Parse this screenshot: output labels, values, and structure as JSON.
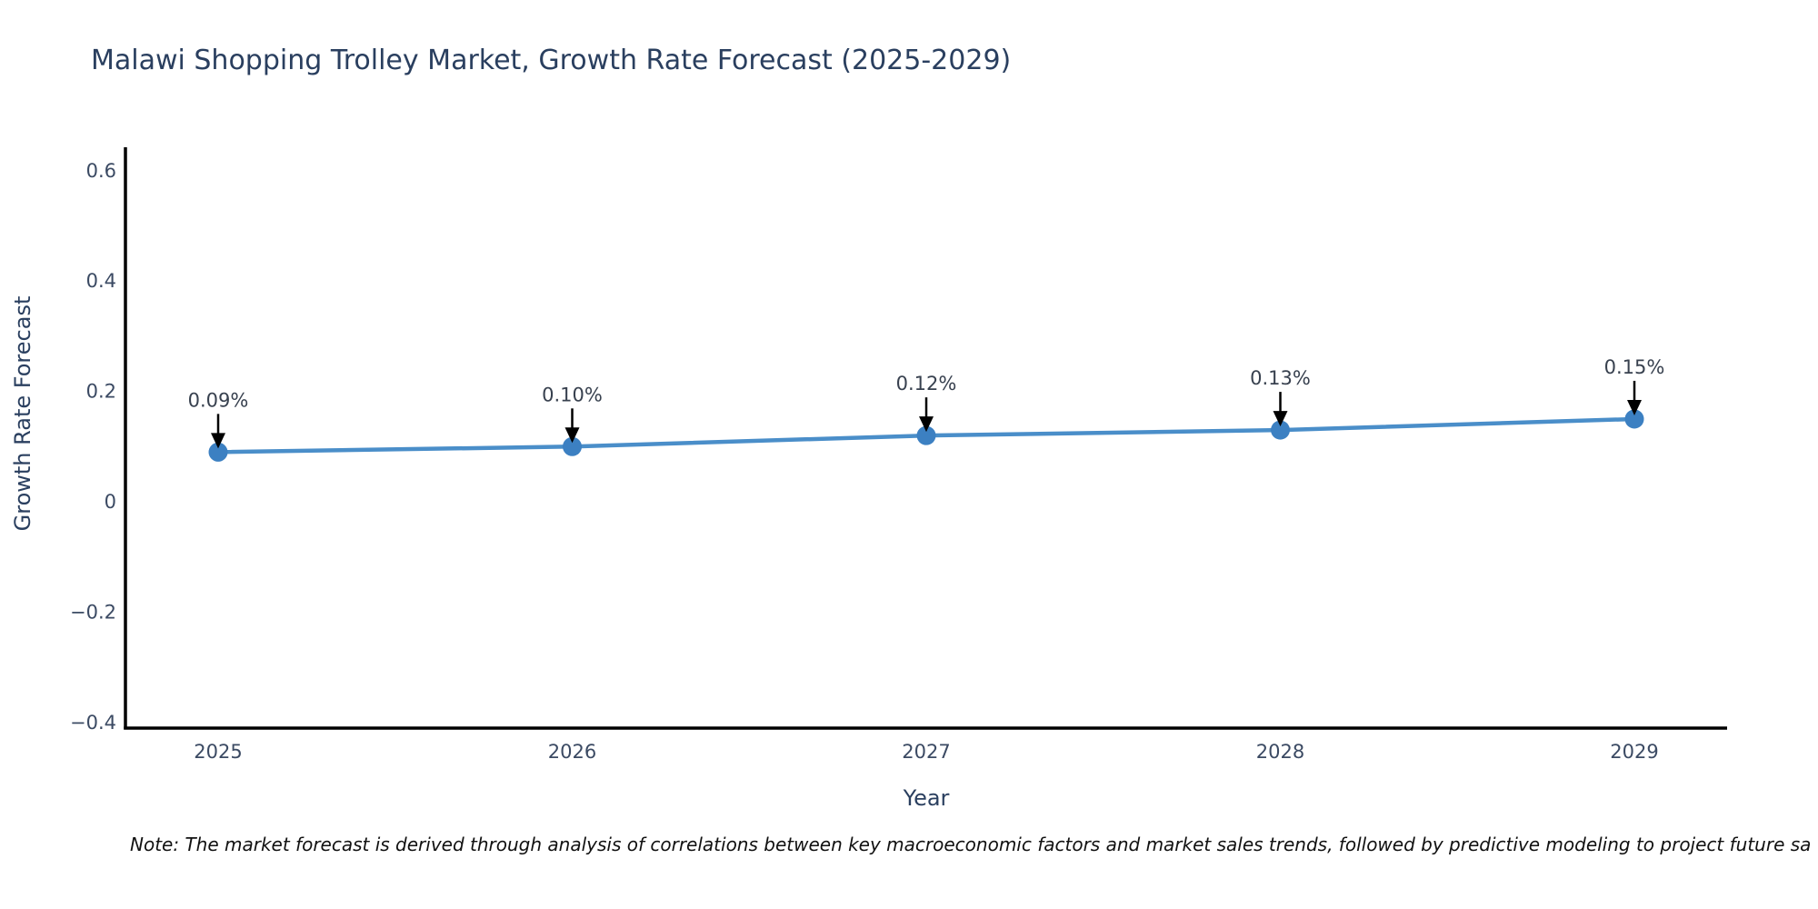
{
  "chart_data": {
    "type": "line",
    "title": "Malawi Shopping Trolley Market, Growth Rate Forecast (2025-2029)",
    "xlabel": "Year",
    "ylabel": "Growth Rate Forecast",
    "categories": [
      "2025",
      "2026",
      "2027",
      "2028",
      "2029"
    ],
    "values": [
      0.09,
      0.1,
      0.12,
      0.13,
      0.15
    ],
    "point_labels": [
      "0.09%",
      "0.10%",
      "0.12%",
      "0.13%",
      "0.15%"
    ],
    "ytick_values": [
      -0.4,
      -0.2,
      0,
      0.2,
      0.4,
      0.6
    ],
    "ytick_labels": [
      "−0.4",
      "−0.2",
      "0",
      "0.2",
      "0.4",
      "0.6"
    ],
    "ylim": [
      -0.41,
      0.64
    ],
    "grid": false,
    "legend": "none",
    "annotation_arrows": true,
    "colors": {
      "line": "#4a8ec9",
      "marker": "#3c80c2",
      "arrow": "#000000",
      "axis_line": "#000000",
      "title_text": "#2a3f5f",
      "tick_text": "#3b4a63",
      "annotation_text": "#38414f"
    }
  },
  "note": {
    "text": "Note: The market forecast is derived through analysis of correlations between key macroeconomic factors and market sales trends, followed by predictive modeling to project future sa"
  }
}
